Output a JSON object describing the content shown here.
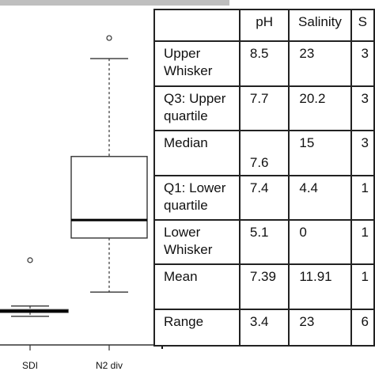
{
  "chart_data": {
    "type": "box",
    "categories": [
      "SDI",
      "N2 div"
    ],
    "boxes": [
      {
        "category": "SDI",
        "whisker_low": 0.39,
        "q1": 0.62,
        "median": 0.69,
        "q3": 0.78,
        "whisker_high": 0.99,
        "outliers": [
          3.66
        ]
      },
      {
        "category": "N2 div",
        "whisker_low": 1.8,
        "q1": 4.95,
        "median": 6.0,
        "q3": 9.7,
        "whisker_high": 15.4,
        "outliers": [
          16.6
        ]
      }
    ],
    "ylim": [
      -1.0,
      17.8
    ],
    "table": {
      "columns": [
        "",
        "pH",
        "Salinity",
        "S"
      ],
      "rows": [
        {
          "label": [
            "Upper",
            "Whisker"
          ],
          "values": [
            "8.5",
            "23",
            "3"
          ]
        },
        {
          "label": [
            "Q3: Upper",
            "quartile"
          ],
          "values": [
            "7.7",
            "20.2",
            "3"
          ]
        },
        {
          "label": [
            "Median"
          ],
          "values": [
            "7.6",
            "15",
            "3"
          ]
        },
        {
          "label": [
            "Q1: Lower",
            "quartile"
          ],
          "values": [
            "7.4",
            "4.4",
            "1"
          ]
        },
        {
          "label": [
            "Lower",
            "Whisker"
          ],
          "values": [
            "5.1",
            "0",
            "1"
          ]
        },
        {
          "label": [
            "Mean"
          ],
          "values": [
            "7.39",
            "11.91",
            "1"
          ]
        },
        {
          "label": [
            "Range"
          ],
          "values": [
            "3.4",
            "23",
            "6"
          ]
        }
      ]
    }
  },
  "colors": {
    "box_stroke": "#333333",
    "median_line": "#000000",
    "table_border": "#222222",
    "background": "#ffffff",
    "top_bar": "#bfbfbf"
  }
}
